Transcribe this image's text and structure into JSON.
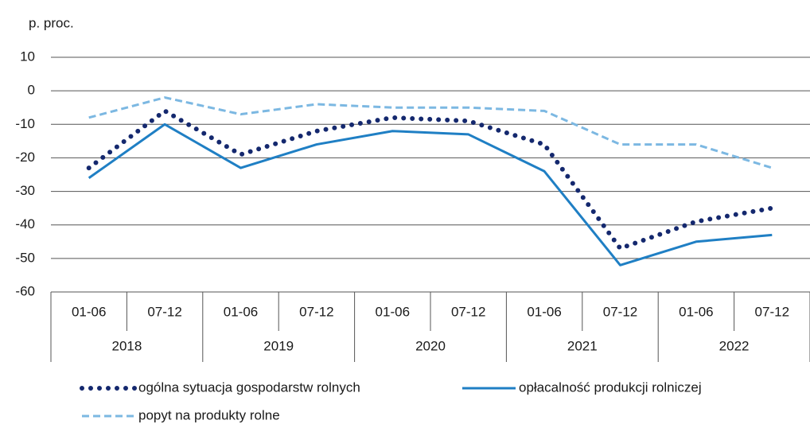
{
  "chart_data": {
    "type": "line",
    "y_axis_label": "p. proc.",
    "categories": [
      "01-06",
      "07-12",
      "01-06",
      "07-12",
      "01-06",
      "07-12",
      "01-06",
      "07-12",
      "01-06",
      "07-12"
    ],
    "groups": [
      "2018",
      "2019",
      "2020",
      "2021",
      "2022"
    ],
    "series": [
      {
        "name": "ogólna sytuacja gospodarstw rolnych",
        "color": "#14286e",
        "style": "dotted",
        "values": [
          -23,
          -6,
          -19,
          -12,
          -8,
          -9,
          -16,
          -47,
          -39,
          -35
        ]
      },
      {
        "name": "opłacalność produkcji rolniczej",
        "color": "#1f7fc4",
        "style": "solid",
        "values": [
          -26,
          -10,
          -23,
          -16,
          -12,
          -13,
          -24,
          -52,
          -45,
          -43
        ]
      },
      {
        "name": "popyt na produkty rolne",
        "color": "#7cb8e2",
        "style": "dashed",
        "values": [
          -8,
          -2,
          -7,
          -4,
          -5,
          -5,
          -6,
          -16,
          -16,
          -23
        ]
      }
    ],
    "ylim": [
      -60,
      10
    ],
    "yticks": [
      -60,
      -50,
      -40,
      -30,
      -20,
      -10,
      0,
      10
    ],
    "grid": true
  }
}
